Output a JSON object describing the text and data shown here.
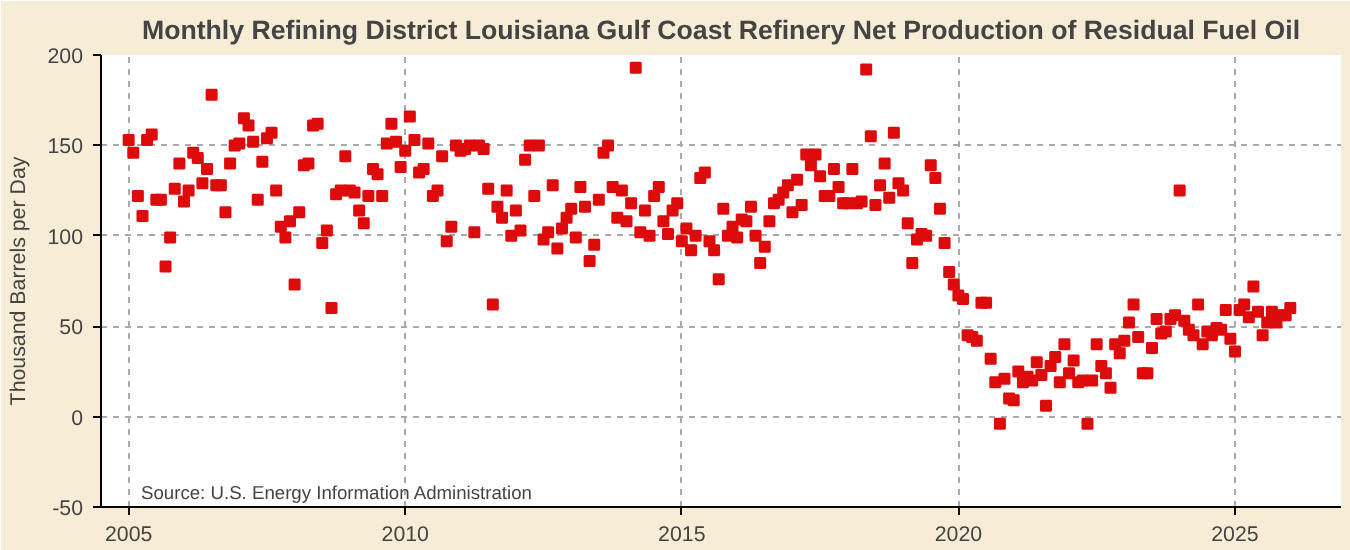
{
  "chart_data": {
    "type": "scatter",
    "title": "Monthly Refining District Louisiana Gulf Coast Refinery Net Production of Residual Fuel Oil",
    "ylabel": "Thousand Barrels per Day",
    "annotations": [
      "Source: U.S. Energy Information Administration"
    ],
    "xlim": [
      "2004-07",
      "2026-12"
    ],
    "xticks": [
      {
        "value": "2005-01",
        "label": "2005"
      },
      {
        "value": "2010-01",
        "label": "2010"
      },
      {
        "value": "2015-01",
        "label": "2015"
      },
      {
        "value": "2020-01",
        "label": "2020"
      },
      {
        "value": "2025-01",
        "label": "2025"
      }
    ],
    "ylim": [
      -50,
      200
    ],
    "yticks": [
      -50,
      0,
      50,
      100,
      150,
      200
    ],
    "grid": true,
    "marker": "square",
    "x": [
      "2005-01",
      "2005-02",
      "2005-03",
      "2005-04",
      "2005-05",
      "2005-06",
      "2005-07",
      "2005-08",
      "2005-09",
      "2005-10",
      "2005-11",
      "2005-12",
      "2006-01",
      "2006-02",
      "2006-03",
      "2006-04",
      "2006-05",
      "2006-06",
      "2006-07",
      "2006-08",
      "2006-09",
      "2006-10",
      "2006-11",
      "2006-12",
      "2007-01",
      "2007-02",
      "2007-03",
      "2007-04",
      "2007-05",
      "2007-06",
      "2007-07",
      "2007-08",
      "2007-09",
      "2007-10",
      "2007-11",
      "2007-12",
      "2008-01",
      "2008-02",
      "2008-03",
      "2008-04",
      "2008-05",
      "2008-06",
      "2008-07",
      "2008-08",
      "2008-09",
      "2008-10",
      "2008-11",
      "2008-12",
      "2009-01",
      "2009-02",
      "2009-03",
      "2009-04",
      "2009-05",
      "2009-06",
      "2009-07",
      "2009-08",
      "2009-09",
      "2009-10",
      "2009-11",
      "2009-12",
      "2010-01",
      "2010-02",
      "2010-03",
      "2010-04",
      "2010-05",
      "2010-06",
      "2010-07",
      "2010-08",
      "2010-09",
      "2010-10",
      "2010-11",
      "2010-12",
      "2011-01",
      "2011-02",
      "2011-03",
      "2011-04",
      "2011-05",
      "2011-06",
      "2011-07",
      "2011-08",
      "2011-09",
      "2011-10",
      "2011-11",
      "2011-12",
      "2012-01",
      "2012-02",
      "2012-03",
      "2012-04",
      "2012-05",
      "2012-06",
      "2012-07",
      "2012-08",
      "2012-09",
      "2012-10",
      "2012-11",
      "2012-12",
      "2013-01",
      "2013-02",
      "2013-03",
      "2013-04",
      "2013-05",
      "2013-06",
      "2013-07",
      "2013-08",
      "2013-09",
      "2013-10",
      "2013-11",
      "2013-12",
      "2014-01",
      "2014-02",
      "2014-03",
      "2014-04",
      "2014-05",
      "2014-06",
      "2014-07",
      "2014-08",
      "2014-09",
      "2014-10",
      "2014-11",
      "2014-12",
      "2015-01",
      "2015-02",
      "2015-03",
      "2015-04",
      "2015-05",
      "2015-06",
      "2015-07",
      "2015-08",
      "2015-09",
      "2015-10",
      "2015-11",
      "2015-12",
      "2016-01",
      "2016-02",
      "2016-03",
      "2016-04",
      "2016-05",
      "2016-06",
      "2016-07",
      "2016-08",
      "2016-09",
      "2016-10",
      "2016-11",
      "2016-12",
      "2017-01",
      "2017-02",
      "2017-03",
      "2017-04",
      "2017-05",
      "2017-06",
      "2017-07",
      "2017-08",
      "2017-09",
      "2017-10",
      "2017-11",
      "2017-12",
      "2018-01",
      "2018-02",
      "2018-03",
      "2018-04",
      "2018-05",
      "2018-06",
      "2018-07",
      "2018-08",
      "2018-09",
      "2018-10",
      "2018-11",
      "2018-12",
      "2019-01",
      "2019-02",
      "2019-03",
      "2019-04",
      "2019-05",
      "2019-06",
      "2019-07",
      "2019-08",
      "2019-09",
      "2019-10",
      "2019-11",
      "2019-12",
      "2020-01",
      "2020-02",
      "2020-03",
      "2020-04",
      "2020-05",
      "2020-06",
      "2020-07",
      "2020-08",
      "2020-09",
      "2020-10",
      "2020-11",
      "2020-12",
      "2021-01",
      "2021-02",
      "2021-03",
      "2021-04",
      "2021-05",
      "2021-06",
      "2021-07",
      "2021-08",
      "2021-09",
      "2021-10",
      "2021-11",
      "2021-12",
      "2022-01",
      "2022-02",
      "2022-03",
      "2022-04",
      "2022-05",
      "2022-06",
      "2022-07",
      "2022-08",
      "2022-09",
      "2022-10",
      "2022-11",
      "2022-12",
      "2023-01",
      "2023-02",
      "2023-03",
      "2023-04",
      "2023-05",
      "2023-06",
      "2023-07",
      "2023-08",
      "2023-09",
      "2023-10",
      "2023-11",
      "2023-12",
      "2024-01",
      "2024-02",
      "2024-03",
      "2024-04",
      "2024-05",
      "2024-06",
      "2024-07",
      "2024-08",
      "2024-09",
      "2024-10",
      "2024-11",
      "2024-12",
      "2025-01",
      "2025-02",
      "2025-03",
      "2025-04",
      "2025-05",
      "2025-06",
      "2025-07",
      "2025-08",
      "2025-09",
      "2025-10",
      "2025-11",
      "2025-12",
      "2026-01"
    ],
    "series": [
      {
        "color": "#dd0b0b",
        "values": [
          153,
          146,
          122,
          111,
          153,
          156,
          120,
          120,
          83,
          99,
          126,
          140,
          119,
          125,
          146,
          143,
          129,
          137,
          178,
          128,
          128,
          113,
          140,
          150,
          151,
          165,
          161,
          152,
          120,
          141,
          154,
          157,
          125,
          105,
          99,
          108,
          73,
          113,
          139,
          140,
          161,
          162,
          96,
          103,
          60,
          123,
          125,
          144,
          125,
          124,
          114,
          107,
          122,
          137,
          134,
          122,
          151,
          162,
          152,
          138,
          147,
          166,
          153,
          135,
          137,
          151,
          122,
          125,
          144,
          97,
          105,
          150,
          147,
          148,
          150,
          102,
          150,
          148,
          126,
          62,
          116,
          110,
          125,
          100,
          114,
          103,
          142,
          150,
          122,
          150,
          98,
          102,
          128,
          93,
          104,
          110,
          115,
          99,
          127,
          116,
          86,
          95,
          120,
          146,
          150,
          127,
          110,
          125,
          108,
          118,
          193,
          102,
          114,
          100,
          122,
          127,
          108,
          101,
          114,
          118,
          97,
          104,
          92,
          100,
          132,
          135,
          97,
          92,
          76,
          115,
          100,
          105,
          99,
          109,
          108,
          116,
          100,
          85,
          94,
          108,
          118,
          120,
          124,
          128,
          113,
          131,
          117,
          145,
          139,
          145,
          133,
          122,
          122,
          137,
          127,
          118,
          118,
          137,
          118,
          119,
          192,
          155,
          117,
          128,
          140,
          121,
          157,
          129,
          125,
          107,
          85,
          98,
          101,
          100,
          139,
          132,
          115,
          96,
          80,
          73,
          67,
          65,
          45,
          44,
          42,
          63,
          63,
          32,
          19,
          -4,
          21,
          10,
          9,
          25,
          19,
          22,
          20,
          30,
          23,
          6,
          28,
          33,
          19,
          40,
          24,
          31,
          19,
          20,
          -4,
          20,
          40,
          28,
          24,
          16,
          40,
          35,
          42,
          52,
          62,
          44,
          24,
          24,
          38,
          54,
          46,
          47,
          54,
          56,
          125,
          53,
          48,
          45,
          62,
          40,
          47,
          45,
          49,
          48,
          59,
          43,
          36,
          59,
          62,
          55,
          72,
          58,
          45,
          52,
          58,
          52,
          56,
          56,
          60
        ]
      }
    ]
  }
}
